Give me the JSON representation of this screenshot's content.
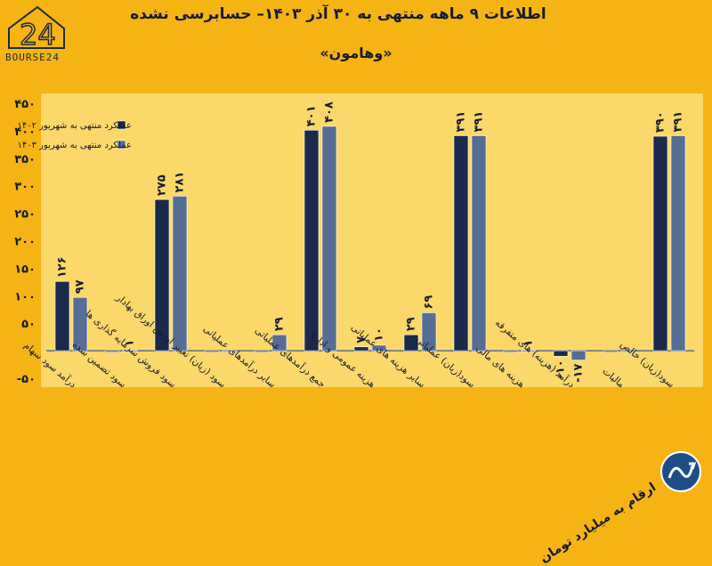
{
  "header": {
    "title": "اطلاعات ۹ ماهه منتهی به ۳۰ آذر ۱۴۰۳– حسابرسی نشده",
    "subtitle": "«وهامون»",
    "logo_text": "BOURSE24",
    "footnote": "ارقام به میلیارد تومان"
  },
  "colors": {
    "background": "#f5b414",
    "plot_background": "#fbd86a",
    "series_1402": "#1b2a4a",
    "series_1403": "#566d94",
    "text": "#151c30"
  },
  "chart_data": {
    "type": "bar",
    "ylim": [
      -50,
      450
    ],
    "yticks": [
      {
        "value": 450,
        "label": "۴۵۰"
      },
      {
        "value": 400,
        "label": "۴۰۰"
      },
      {
        "value": 350,
        "label": "۳۵۰"
      },
      {
        "value": 300,
        "label": "۳۰۰"
      },
      {
        "value": 250,
        "label": "۲۵۰"
      },
      {
        "value": 200,
        "label": "۲۰۰"
      },
      {
        "value": 150,
        "label": "۱۵۰"
      },
      {
        "value": 100,
        "label": "۱۰۰"
      },
      {
        "value": 50,
        "label": "۵۰"
      },
      {
        "value": -50,
        "label": "-۵۰"
      }
    ],
    "grid": false,
    "legend_position": "top-left",
    "categories": [
      "درآمد سود سهام",
      "سود تضمین شده",
      "سود فروش سرمایه گذاری ها",
      "سود (زیان) تغییر ارزش اوراق بهادار",
      "سایر درآمدهای عملیاتی",
      "جمع درآمدهای عملیاتی",
      "هزینه عمومی و اداری",
      "سایر هزینه های عملیاتی",
      "سود(زیان) عملیاتی",
      "هزینه های مالی",
      "درآمد (هزینه) های متفرقه",
      "مالیات",
      "سود(زیان) خالص"
    ],
    "series": [
      {
        "name": "عملکرد منتهی به شهریور ۱۴۰۲",
        "values": [
          126,
          0,
          275,
          0,
          0,
          401,
          7,
          29,
          391,
          0,
          -10,
          0,
          390
        ],
        "labels": [
          "۱۲۶",
          "",
          "۲۷۵",
          "",
          "",
          "۴۰۱",
          "۷",
          "۲۹",
          "۳۹۱",
          "",
          "-۱۰",
          "",
          "۳۹۰"
        ]
      },
      {
        "name": "عملکرد منتهی به شهریور ۱۴۰۳",
        "values": [
          97,
          1,
          281,
          0,
          29,
          408,
          10,
          69,
          391,
          1,
          -17,
          0,
          391
        ],
        "labels": [
          "۹۷",
          "۱",
          "۲۸۱",
          "",
          "۲۹",
          "۴۰۸",
          "۱۰",
          "۶۹",
          "۳۹۱",
          "۱",
          "-۱۷",
          "",
          "۳۹۱"
        ]
      }
    ]
  }
}
